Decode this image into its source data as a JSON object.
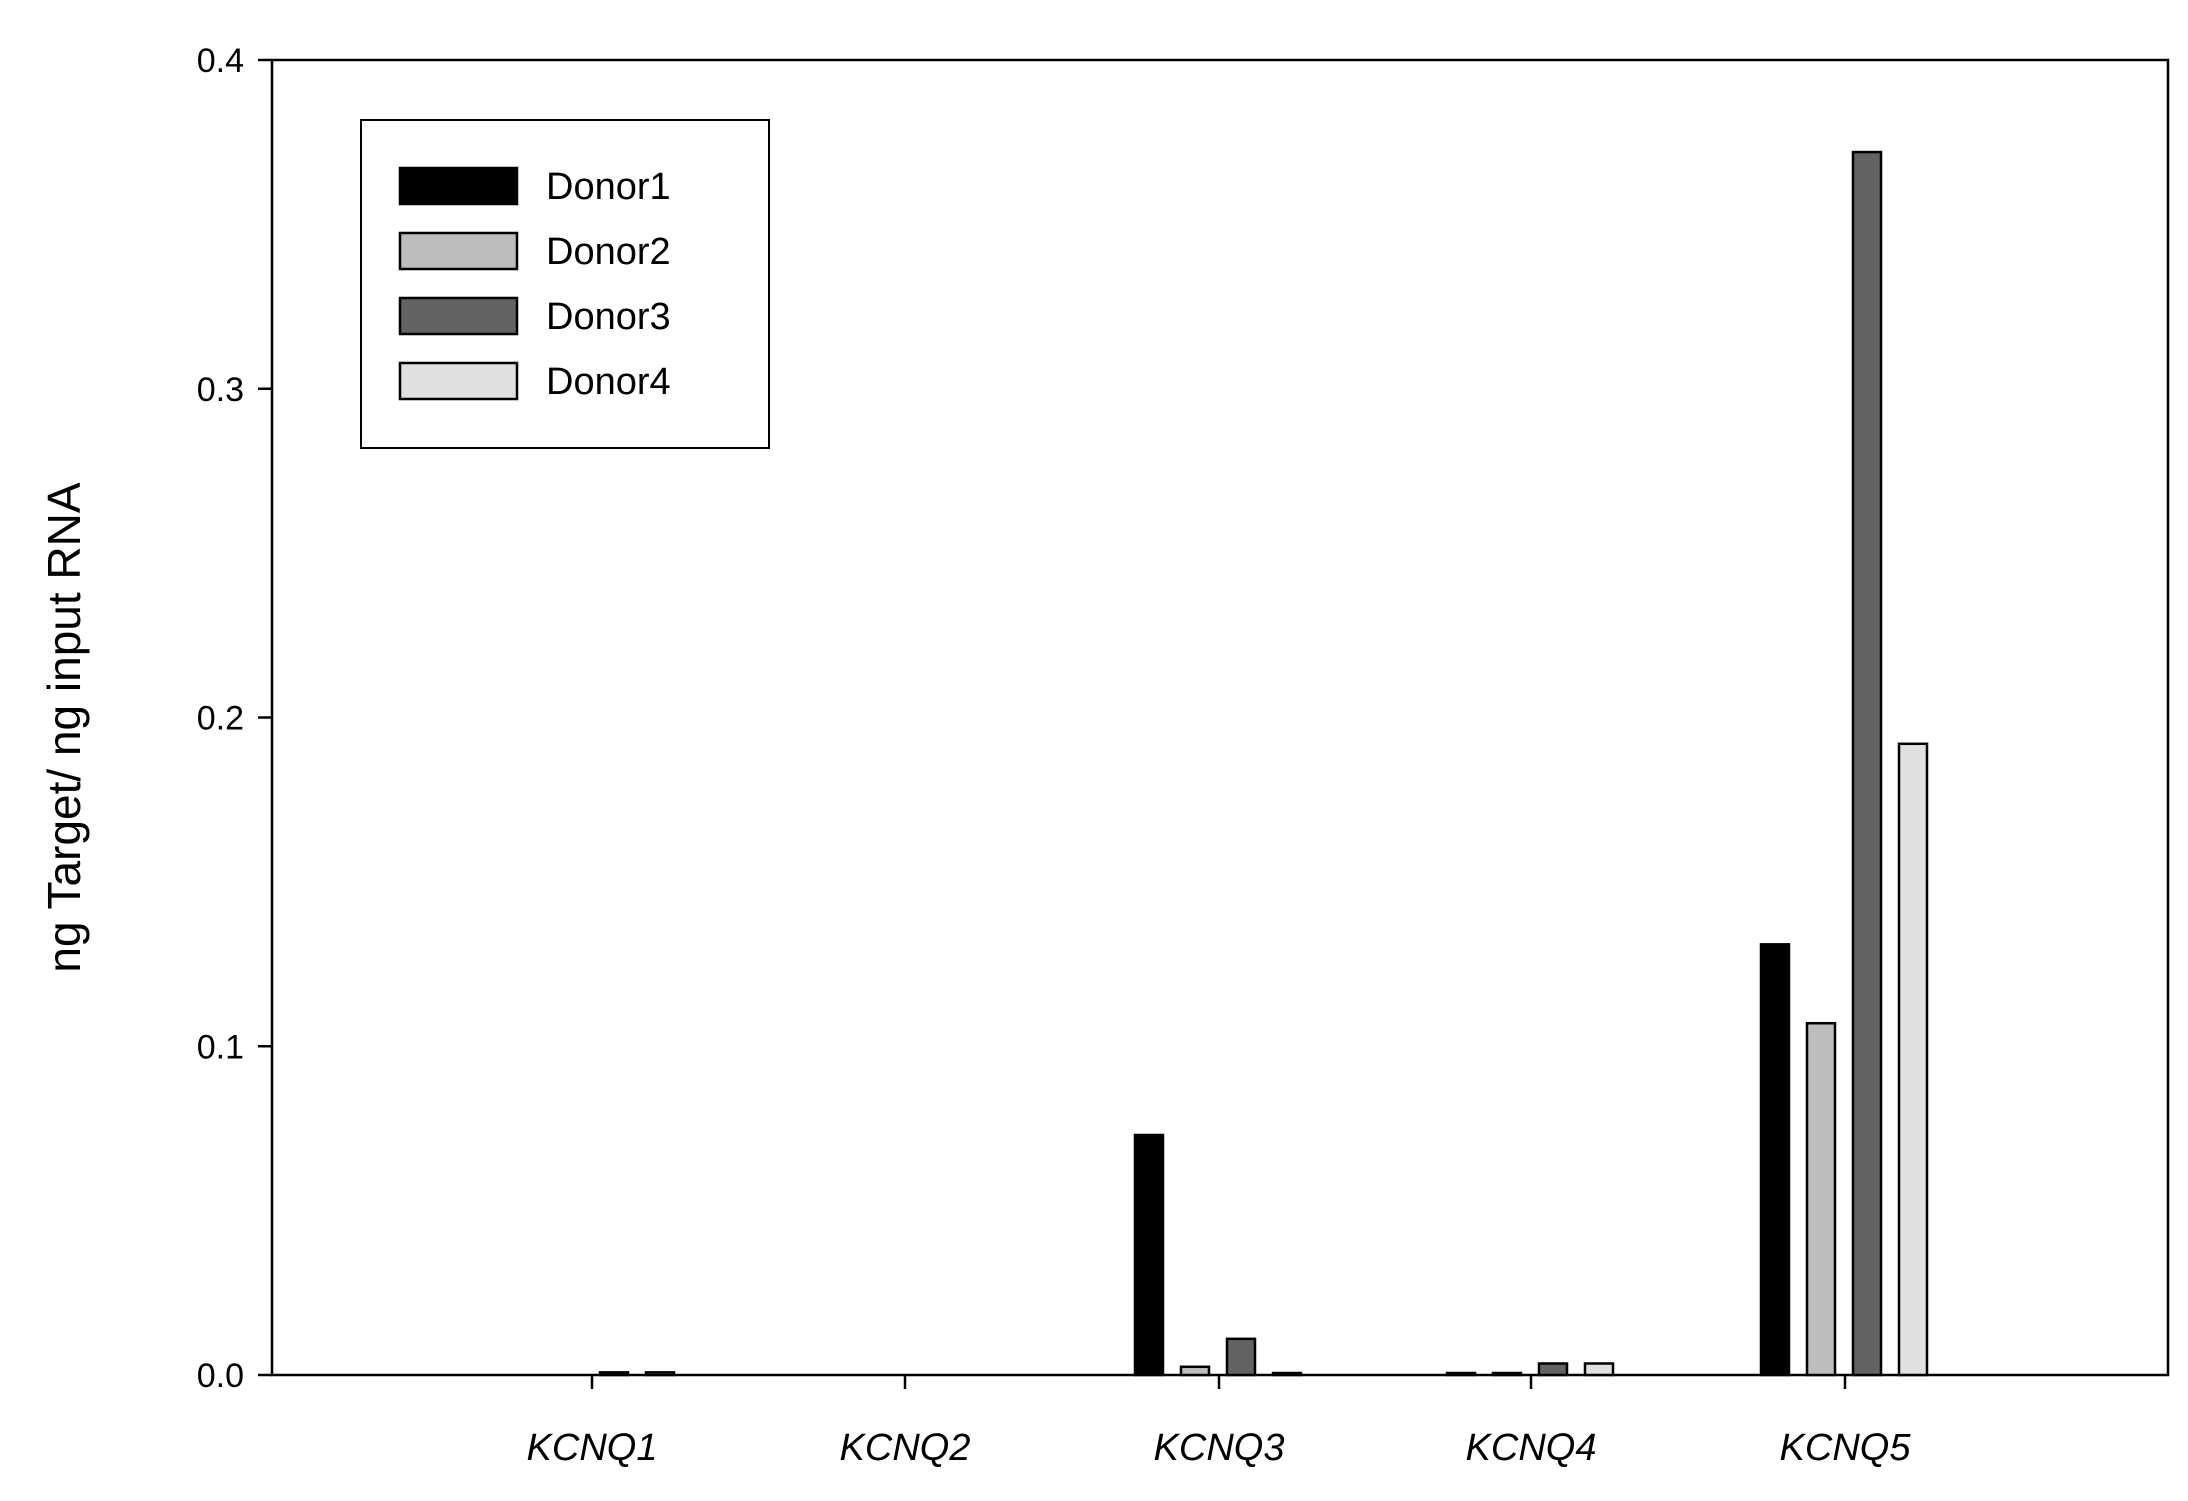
{
  "chart_data": {
    "type": "bar",
    "title": "",
    "xlabel": "",
    "ylabel": "ng Target/ ng input RNA",
    "categories": [
      "KCNQ1",
      "KCNQ2",
      "KCNQ3",
      "KCNQ4",
      "KCNQ5"
    ],
    "series": [
      {
        "name": "Donor1",
        "color": "#000000",
        "values": [
          0.0,
          0.0,
          0.073,
          0.0005,
          0.131
        ]
      },
      {
        "name": "Donor2",
        "color": "#bdbdbd",
        "values": [
          0.0,
          0.0,
          0.0025,
          0.0005,
          0.107
        ]
      },
      {
        "name": "Donor3",
        "color": "#636363",
        "values": [
          0.0008,
          0.0,
          0.011,
          0.0035,
          0.372
        ]
      },
      {
        "name": "Donor4",
        "color": "#e0e0e0",
        "values": [
          0.0008,
          0.0,
          0.0005,
          0.0035,
          0.192
        ]
      }
    ],
    "ylim": [
      0,
      0.4
    ],
    "yticks": [
      "0.0",
      "0.1",
      "0.2",
      "0.3",
      "0.4"
    ],
    "legend_position": "top-left",
    "grid": false
  }
}
